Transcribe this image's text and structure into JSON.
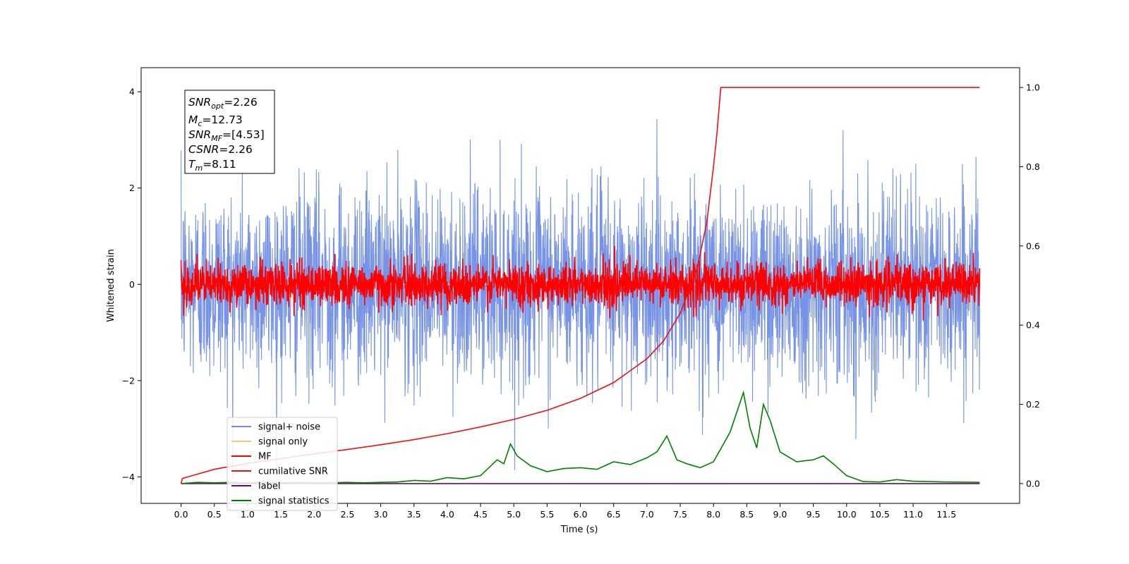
{
  "chart_data": {
    "type": "line",
    "title": "",
    "xlabel": "Time (s)",
    "ylabel": "Whitened strain",
    "xlim": [
      -0.6,
      12.6
    ],
    "ylim": [
      -4.55,
      4.5
    ],
    "y2lim": [
      -0.05,
      1.05
    ],
    "x_ticks": [
      "0.0",
      "0.5",
      "1.0",
      "1.5",
      "2.0",
      "2.5",
      "3.0",
      "3.5",
      "4.0",
      "4.5",
      "5.0",
      "5.5",
      "6.0",
      "6.5",
      "7.0",
      "7.5",
      "8.0",
      "8.5",
      "9.0",
      "9.5",
      "10.0",
      "10.5",
      "11.0",
      "11.5"
    ],
    "y_ticks": [
      "−4",
      "−2",
      "0",
      "2",
      "4"
    ],
    "y2_ticks": [
      "0.0",
      "0.2",
      "0.4",
      "0.6",
      "0.8",
      "1.0"
    ],
    "grid": false,
    "legend_position": "lower-left",
    "legend": [
      {
        "label": "signal+ noise",
        "color": "#6f8de6"
      },
      {
        "label": "signal only",
        "color": "#f7c978"
      },
      {
        "label": "MF",
        "color": "#ff0000"
      },
      {
        "label": "cumilative SNR",
        "color": "#ee1111"
      },
      {
        "label": "label",
        "color": "#6a0a6a"
      },
      {
        "label": "signal statistics",
        "color": "#008000"
      }
    ],
    "annotation": {
      "snr_opt_label": "SNR",
      "snr_opt_sub": "opt",
      "snr_opt_value": "=2.26",
      "mc_label": "M",
      "mc_sub": "c",
      "mc_value": "=12.73",
      "snr_mf_label": "SNR",
      "snr_mf_sub": "MF",
      "snr_mf_value": "=[4.53]",
      "csnr_label": "CSNR",
      "csnr_value": "=2.26",
      "tm_label": "T",
      "tm_sub": "m",
      "tm_value": "=8.11"
    },
    "series": [
      {
        "name": "signal+ noise",
        "axis": "left",
        "style": "noise",
        "x_range": [
          0.0,
          12.0
        ],
        "mean": 0.0,
        "std": 1.0,
        "points": 3000
      },
      {
        "name": "signal only",
        "axis": "left",
        "style": "line",
        "x": [
          0.0,
          7.9,
          8.0,
          8.05,
          8.1,
          8.15,
          8.2,
          12.0
        ],
        "y": [
          0.0,
          0.0,
          0.1,
          -0.2,
          0.15,
          -0.1,
          0.0,
          0.0
        ]
      },
      {
        "name": "MF",
        "axis": "left",
        "style": "noise",
        "x_range": [
          0.0,
          12.0
        ],
        "mean": 0.0,
        "std": 0.22,
        "points": 3000
      },
      {
        "name": "cumilative SNR",
        "axis": "right",
        "style": "line",
        "x": [
          0.0,
          0.02,
          0.5,
          1.0,
          1.5,
          2.0,
          2.5,
          3.0,
          3.5,
          4.0,
          4.5,
          5.0,
          5.5,
          6.0,
          6.5,
          7.0,
          7.25,
          7.5,
          7.75,
          7.9,
          8.0,
          8.05,
          8.11,
          12.0
        ],
        "y": [
          0.0,
          0.013,
          0.036,
          0.051,
          0.063,
          0.075,
          0.086,
          0.098,
          0.111,
          0.126,
          0.143,
          0.162,
          0.185,
          0.215,
          0.255,
          0.315,
          0.36,
          0.43,
          0.54,
          0.66,
          0.8,
          0.88,
          1.0,
          1.0
        ]
      },
      {
        "name": "label",
        "axis": "right",
        "style": "line",
        "x": [
          0.0,
          12.0
        ],
        "y": [
          0.0,
          0.0
        ]
      },
      {
        "name": "signal statistics",
        "axis": "right",
        "style": "line",
        "x": [
          0.0,
          0.25,
          0.5,
          0.75,
          1.0,
          1.25,
          1.5,
          1.75,
          2.0,
          2.25,
          2.5,
          2.75,
          3.0,
          3.25,
          3.5,
          3.75,
          4.0,
          4.25,
          4.5,
          4.75,
          4.85,
          4.95,
          5.05,
          5.25,
          5.5,
          5.75,
          6.0,
          6.25,
          6.5,
          6.75,
          7.0,
          7.15,
          7.3,
          7.45,
          7.6,
          7.8,
          8.0,
          8.25,
          8.45,
          8.55,
          8.65,
          8.75,
          8.85,
          9.0,
          9.25,
          9.5,
          9.65,
          9.8,
          10.0,
          10.25,
          10.5,
          10.75,
          11.0,
          11.5,
          12.0
        ],
        "y": [
          0.0,
          0.003,
          0.002,
          0.003,
          0.002,
          0.003,
          0.002,
          0.003,
          0.002,
          0.002,
          0.003,
          0.002,
          0.003,
          0.004,
          0.008,
          0.006,
          0.015,
          0.012,
          0.02,
          0.06,
          0.05,
          0.1,
          0.07,
          0.045,
          0.03,
          0.038,
          0.04,
          0.036,
          0.055,
          0.048,
          0.065,
          0.08,
          0.12,
          0.06,
          0.05,
          0.04,
          0.055,
          0.13,
          0.23,
          0.14,
          0.09,
          0.2,
          0.16,
          0.08,
          0.055,
          0.06,
          0.07,
          0.05,
          0.02,
          0.005,
          0.004,
          0.01,
          0.006,
          0.004,
          0.003
        ]
      }
    ]
  }
}
